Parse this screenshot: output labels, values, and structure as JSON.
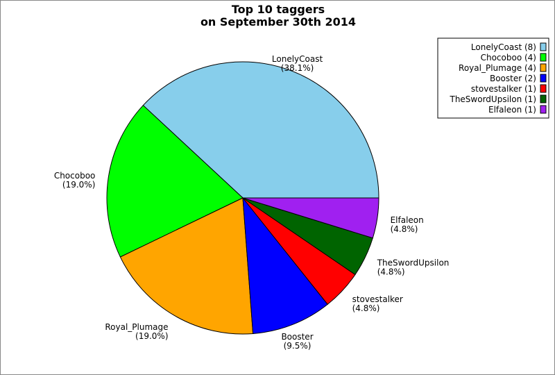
{
  "chart_data": {
    "type": "pie",
    "title": [
      "Top 10 taggers",
      "on September 30th 2014"
    ],
    "categories": [
      "LonelyCoast",
      "Chocoboo",
      "Royal_Plumage",
      "Booster",
      "stovestalker",
      "TheSwordUpsilon",
      "Elfaleon"
    ],
    "values": [
      8,
      4,
      4,
      2,
      1,
      1,
      1
    ],
    "percent_labels": [
      "(38.1%)",
      "(19.0%)",
      "(19.0%)",
      "(9.5%)",
      "(4.8%)",
      "(4.8%)",
      "(4.8%)"
    ],
    "legend_entries": [
      "LonelyCoast (8)",
      "Chocoboo (4)",
      "Royal_Plumage (4)",
      "Booster (2)",
      "stovestalker (1)",
      "TheSwordUpsilon (1)",
      "Elfaleon (1)"
    ],
    "colors": [
      "#87CEEB",
      "#00FF00",
      "#FFA500",
      "#0000FF",
      "#FF0000",
      "#006400",
      "#A020F0"
    ],
    "start_angle": "east",
    "direction": "counterclockwise",
    "legend_placement": "top-right"
  }
}
